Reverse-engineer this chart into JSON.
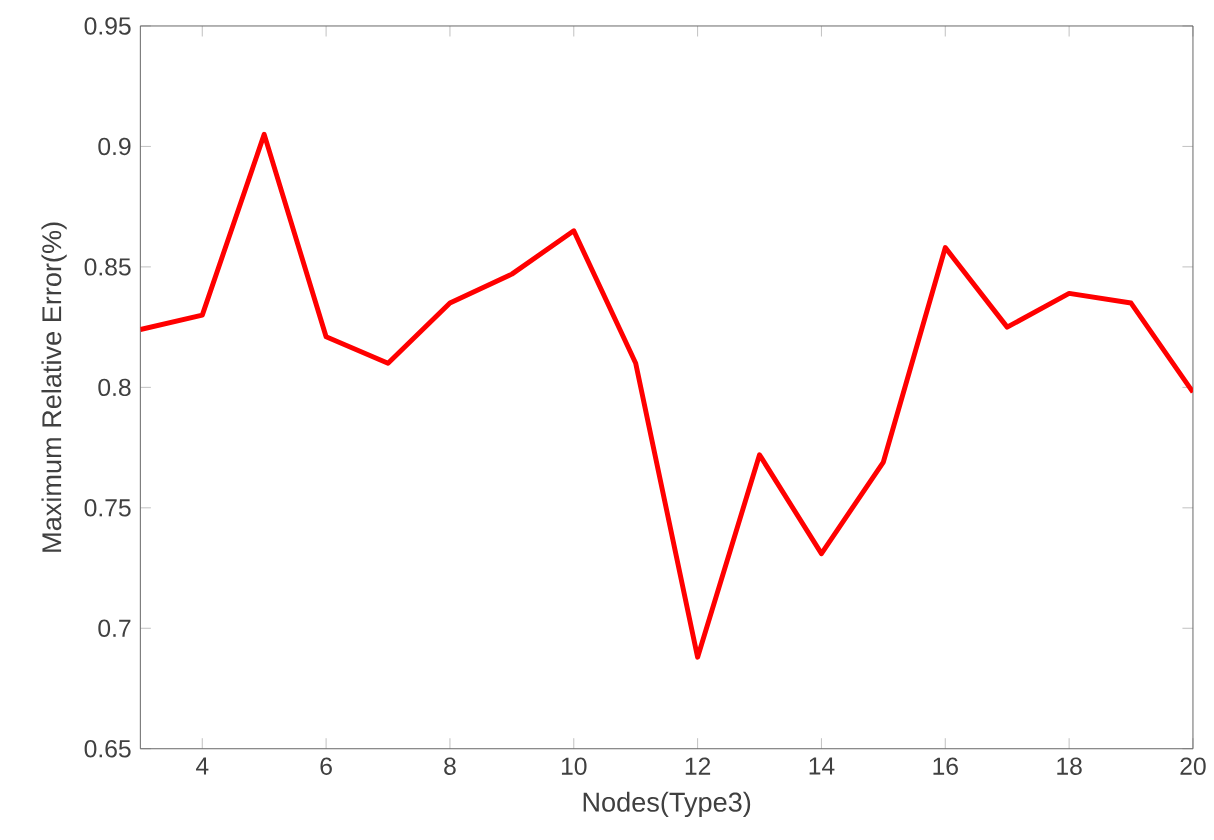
{
  "chart_data": {
    "type": "line",
    "xlabel": "Nodes(Type3)",
    "ylabel": "Maximum Relative Error(%)",
    "x": [
      3,
      4,
      5,
      6,
      7,
      8,
      9,
      10,
      11,
      12,
      13,
      14,
      15,
      16,
      17,
      18,
      19,
      20
    ],
    "series": [
      {
        "color": "#ff0000",
        "values": [
          0.824,
          0.83,
          0.905,
          0.821,
          0.81,
          0.835,
          0.847,
          0.865,
          0.81,
          0.688,
          0.772,
          0.731,
          0.769,
          0.858,
          0.825,
          0.839,
          0.835,
          0.798
        ]
      }
    ],
    "xlim": [
      3,
      20
    ],
    "ylim": [
      0.65,
      0.95
    ],
    "xticks": [
      4,
      6,
      8,
      10,
      12,
      14,
      16,
      18,
      20
    ],
    "yticks": [
      0.65,
      0.7,
      0.75,
      0.8,
      0.85,
      0.9,
      0.95
    ],
    "grid": false,
    "marker": "none",
    "line_style": "solid"
  }
}
